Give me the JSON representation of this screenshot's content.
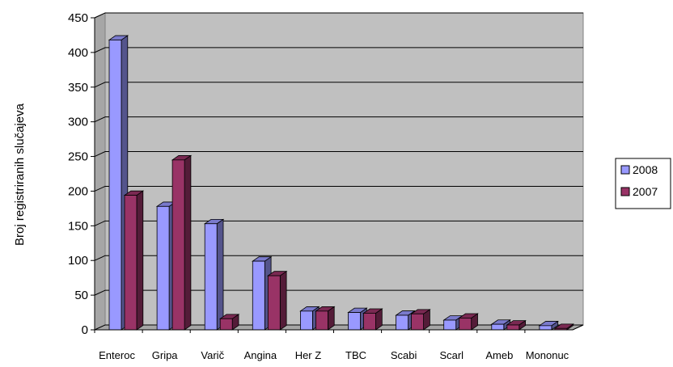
{
  "chart_data": {
    "type": "bar",
    "title": "",
    "xlabel": "",
    "ylabel": "Broj  registriranih  slučajeva",
    "ylim": [
      0,
      450
    ],
    "yticks": [
      0,
      50,
      100,
      150,
      200,
      250,
      300,
      350,
      400,
      450
    ],
    "categories": [
      "Enteroc",
      "Gripa",
      "Varič",
      "Angina",
      "Her Z",
      "TBC",
      "Scabi",
      "Scarl",
      "Ameb",
      "Mononuc"
    ],
    "series": [
      {
        "name": "2008",
        "color": "#9999ff",
        "values": [
          418,
          178,
          153,
          99,
          27,
          25,
          21,
          14,
          8,
          6
        ]
      },
      {
        "name": "2007",
        "color": "#993366",
        "values": [
          194,
          245,
          16,
          78,
          27,
          24,
          23,
          17,
          7,
          2
        ]
      }
    ],
    "grid": true,
    "plot_background": "#c0c0c0",
    "legend": "right",
    "style": "3d-clustered-column"
  }
}
